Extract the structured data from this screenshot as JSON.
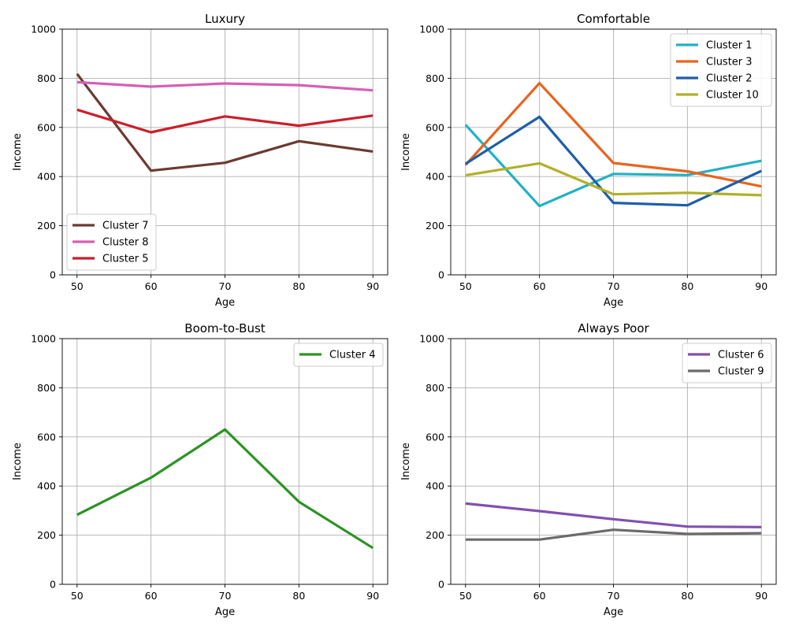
{
  "chart_data": [
    {
      "type": "line",
      "title": "Luxury",
      "xlabel": "Age",
      "ylabel": "Income",
      "x": [
        50,
        60,
        70,
        80,
        90
      ],
      "xticks": [
        "50",
        "60",
        "70",
        "80",
        "90"
      ],
      "yticks": [
        "0",
        "200",
        "400",
        "600",
        "800",
        "1000"
      ],
      "xlim": [
        48,
        92
      ],
      "ylim": [
        0,
        1000
      ],
      "grid": true,
      "legend_position": "lower-left",
      "series": [
        {
          "name": "Cluster 7",
          "color": "#6b3a32",
          "values": [
            818,
            424,
            456,
            544,
            502
          ]
        },
        {
          "name": "Cluster 8",
          "color": "#d65fb4",
          "values": [
            784,
            766,
            779,
            772,
            751
          ]
        },
        {
          "name": "Cluster 5",
          "color": "#cc1f2a",
          "values": [
            672,
            580,
            645,
            607,
            648
          ]
        }
      ]
    },
    {
      "type": "line",
      "title": "Comfortable",
      "xlabel": "Age",
      "ylabel": "Income",
      "x": [
        50,
        60,
        70,
        80,
        90
      ],
      "xticks": [
        "50",
        "60",
        "70",
        "80",
        "90"
      ],
      "yticks": [
        "0",
        "200",
        "400",
        "600",
        "800",
        "1000"
      ],
      "xlim": [
        48,
        92
      ],
      "ylim": [
        0,
        1000
      ],
      "grid": true,
      "legend_position": "upper-right",
      "series": [
        {
          "name": "Cluster 1",
          "color": "#21b1c4",
          "values": [
            611,
            280,
            411,
            406,
            464
          ]
        },
        {
          "name": "Cluster 3",
          "color": "#e8641e",
          "values": [
            447,
            780,
            455,
            421,
            360
          ]
        },
        {
          "name": "Cluster 2",
          "color": "#1f5ea8",
          "values": [
            452,
            643,
            293,
            283,
            423
          ]
        },
        {
          "name": "Cluster 10",
          "color": "#b1b02a",
          "values": [
            405,
            454,
            328,
            334,
            324
          ]
        }
      ]
    },
    {
      "type": "line",
      "title": "Boom-to-Bust",
      "xlabel": "Age",
      "ylabel": "Income",
      "x": [
        50,
        60,
        70,
        80,
        90
      ],
      "xticks": [
        "50",
        "60",
        "70",
        "80",
        "90"
      ],
      "yticks": [
        "0",
        "200",
        "400",
        "600",
        "800",
        "1000"
      ],
      "xlim": [
        48,
        92
      ],
      "ylim": [
        0,
        1000
      ],
      "grid": true,
      "legend_position": "upper-right",
      "series": [
        {
          "name": "Cluster 4",
          "color": "#2c9323",
          "values": [
            283,
            434,
            630,
            336,
            148
          ]
        }
      ]
    },
    {
      "type": "line",
      "title": "Always Poor",
      "xlabel": "Age",
      "ylabel": "Income",
      "x": [
        50,
        60,
        70,
        80,
        90
      ],
      "xticks": [
        "50",
        "60",
        "70",
        "80",
        "90"
      ],
      "yticks": [
        "0",
        "200",
        "400",
        "600",
        "800",
        "1000"
      ],
      "xlim": [
        48,
        92
      ],
      "ylim": [
        0,
        1000
      ],
      "grid": true,
      "legend_position": "upper-right",
      "series": [
        {
          "name": "Cluster 6",
          "color": "#8150b0",
          "values": [
            329,
            298,
            265,
            235,
            233
          ]
        },
        {
          "name": "Cluster 9",
          "color": "#6b6b6b",
          "values": [
            182,
            182,
            222,
            205,
            208
          ]
        }
      ]
    }
  ]
}
